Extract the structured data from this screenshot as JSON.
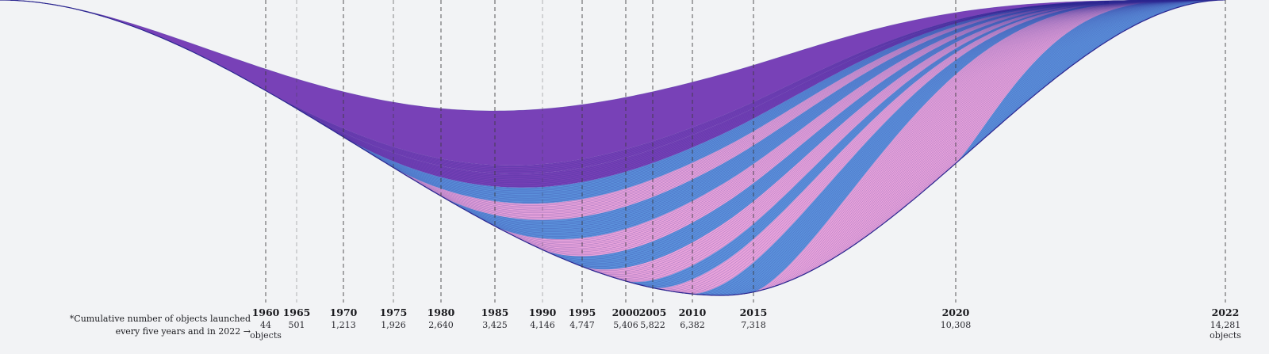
{
  "chart_data": {
    "type": "area",
    "title": "",
    "xlabel": "",
    "ylabel": "",
    "note": {
      "line1": "*Cumulative number of objects launched",
      "line2": "every five years and in 2022 →"
    },
    "unit_label": "objects",
    "x": [
      1960,
      1965,
      1970,
      1975,
      1980,
      1985,
      1990,
      1995,
      2000,
      2005,
      2010,
      2015,
      2020,
      2022
    ],
    "values": [
      44,
      501,
      1213,
      1926,
      2640,
      3425,
      4146,
      4747,
      5406,
      5822,
      6382,
      7318,
      10308,
      14281
    ],
    "value_labels": [
      "44",
      "501",
      "1,213",
      "1,926",
      "2,640",
      "3,425",
      "4,146",
      "4,747",
      "5,406",
      "5,822",
      "6,382",
      "7,318",
      "10,308",
      "14,281"
    ],
    "band_colors": [
      "#6a2db0",
      "#e79ad8",
      "#4a86d8"
    ],
    "line_color": "#2c2790",
    "guide_color": "#3a3a3a",
    "x_range": [
      1960,
      2022
    ]
  }
}
